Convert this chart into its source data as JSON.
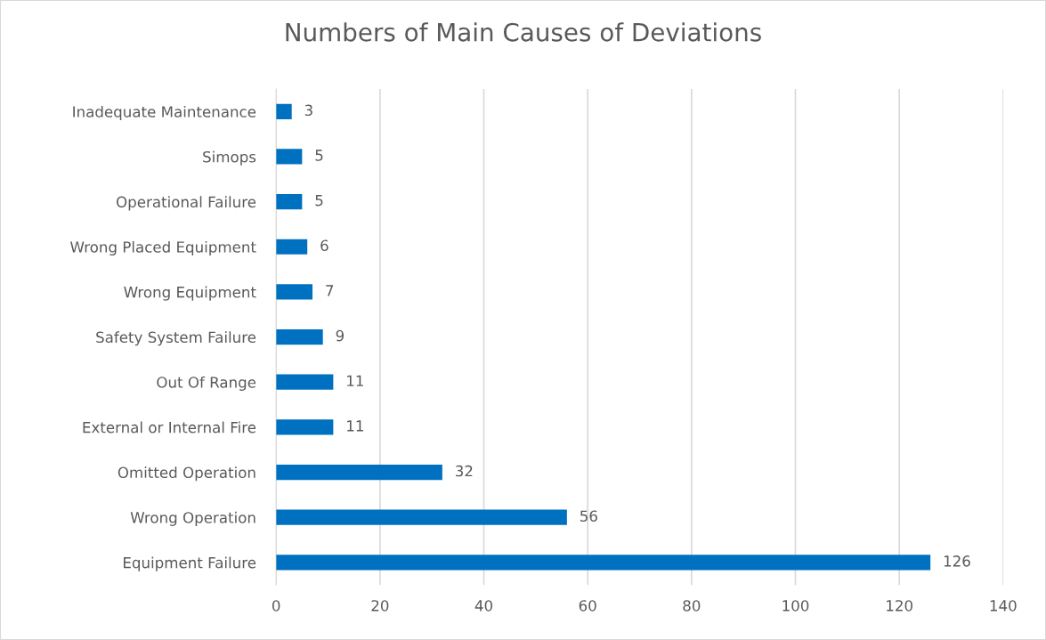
{
  "chart_data": {
    "type": "bar",
    "orientation": "horizontal",
    "title": "Numbers of Main Causes of Deviations",
    "categories": [
      "Inadequate Maintenance",
      "Simops",
      "Operational Failure",
      "Wrong Placed Equipment",
      "Wrong Equipment",
      "Safety System Failure",
      "Out Of Range",
      "External or Internal Fire",
      "Omitted Operation",
      "Wrong Operation",
      "Equipment Failure"
    ],
    "values": [
      3,
      5,
      5,
      6,
      7,
      9,
      11,
      11,
      32,
      56,
      126
    ],
    "color": "#0070c0",
    "xlim": [
      0,
      140
    ],
    "xticks": [
      0,
      20,
      40,
      60,
      80,
      100,
      120,
      140
    ],
    "grid": "x",
    "data_labels": true
  }
}
